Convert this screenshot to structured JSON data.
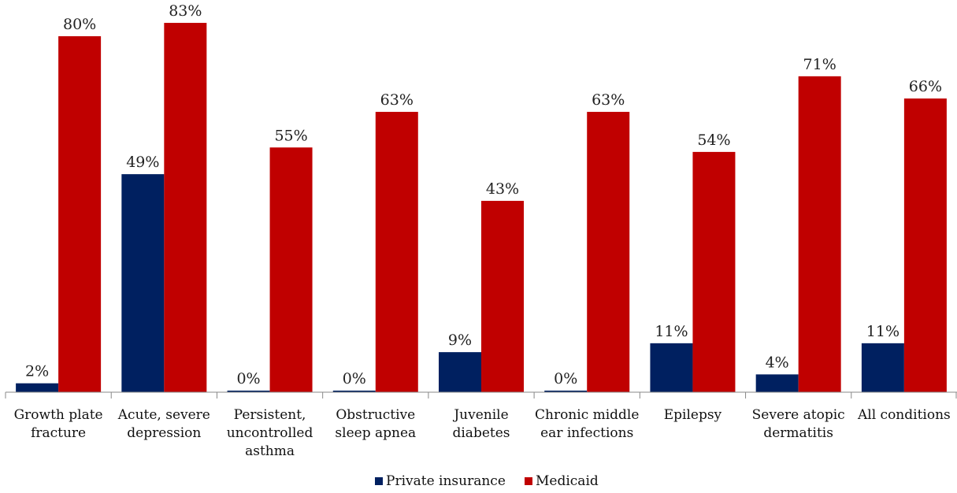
{
  "chart_data": {
    "type": "bar",
    "categories": [
      [
        "Growth plate",
        "fracture"
      ],
      [
        "Acute, severe",
        "depression"
      ],
      [
        "Persistent,",
        "uncontrolled",
        "asthma"
      ],
      [
        "Obstructive",
        "sleep apnea"
      ],
      [
        "Juvenile",
        "diabetes"
      ],
      [
        "Chronic middle",
        "ear infections"
      ],
      [
        "Epilepsy"
      ],
      [
        "Severe atopic",
        "dermatitis"
      ],
      [
        "All conditions"
      ]
    ],
    "series": [
      {
        "name": "Private insurance",
        "color": "#002060",
        "values": [
          2,
          49,
          0,
          0,
          9,
          0,
          11,
          4,
          11
        ],
        "labels": [
          "2%",
          "49%",
          "0%",
          "0%",
          "9%",
          "0%",
          "11%",
          "4%",
          "11%"
        ]
      },
      {
        "name": "Medicaid",
        "color": "#C00000",
        "values": [
          80,
          83,
          55,
          63,
          43,
          63,
          54,
          71,
          66
        ],
        "labels": [
          "80%",
          "83%",
          "55%",
          "63%",
          "43%",
          "63%",
          "54%",
          "71%",
          "66%"
        ]
      }
    ],
    "ylim": [
      0,
      100
    ],
    "grid": false,
    "legend_position": "bottom-center"
  }
}
